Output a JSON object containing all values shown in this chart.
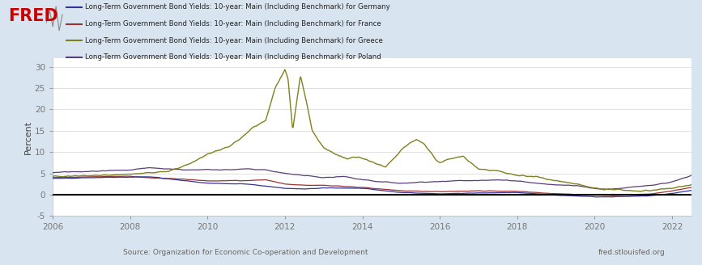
{
  "ylabel": "Percent",
  "source_left": "Source: Organization for Economic Co-operation and Development",
  "source_right": "fred.stlouisfed.org",
  "legend": [
    "Long-Term Government Bond Yields: 10-year: Main (Including Benchmark) for Germany",
    "Long-Term Government Bond Yields: 10-year: Main (Including Benchmark) for France",
    "Long-Term Government Bond Yields: 10-year: Main (Including Benchmark) for Greece",
    "Long-Term Government Bond Yields: 10-year: Main (Including Benchmark) for Poland"
  ],
  "colors": {
    "Germany": "#333399",
    "France": "#993333",
    "Greece": "#808020",
    "Poland": "#5a3e7a"
  },
  "background": "#d8e4ef",
  "plot_bg": "#ffffff",
  "ylim": [
    -5,
    32
  ],
  "yticks": [
    -5,
    0,
    5,
    10,
    15,
    20,
    25,
    30
  ],
  "xstart": 2006.0,
  "xend": 2022.5,
  "xticks": [
    2006,
    2008,
    2010,
    2012,
    2014,
    2016,
    2018,
    2020,
    2022
  ],
  "fred_logo_color": "#cc0000",
  "fred_text": "FRED",
  "line_widths": {
    "Germany": 0.9,
    "France": 0.9,
    "Greece": 1.0,
    "Poland": 0.9
  }
}
